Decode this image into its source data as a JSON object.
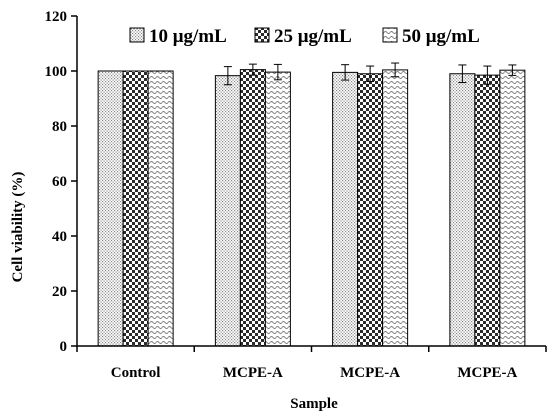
{
  "chart_data": {
    "type": "bar",
    "title": "",
    "xlabel": "Sample",
    "ylabel": "Cell viability (%)",
    "ylim": [
      0,
      120
    ],
    "yticks": [
      "0",
      "20",
      "40",
      "60",
      "80",
      "100",
      "120"
    ],
    "categories": [
      "Control",
      "MCPE-A",
      "MCPE-A",
      "MCPE-A"
    ],
    "grid": false,
    "legend_position": "top",
    "series": [
      {
        "name": "10 μg/mL",
        "pattern": "fine-dots",
        "values": [
          100,
          98.3,
          99.5,
          99.0
        ],
        "errors": [
          0,
          3.3,
          2.8,
          3.2
        ]
      },
      {
        "name": "25 μg/mL",
        "pattern": "checkerboard",
        "values": [
          100,
          100.5,
          99.0,
          98.5
        ],
        "errors": [
          0,
          2.0,
          2.8,
          3.3
        ]
      },
      {
        "name": "50 μg/mL",
        "pattern": "wavy",
        "values": [
          100,
          99.6,
          100.4,
          100.3
        ],
        "errors": [
          0,
          2.8,
          2.5,
          1.9
        ]
      }
    ]
  }
}
